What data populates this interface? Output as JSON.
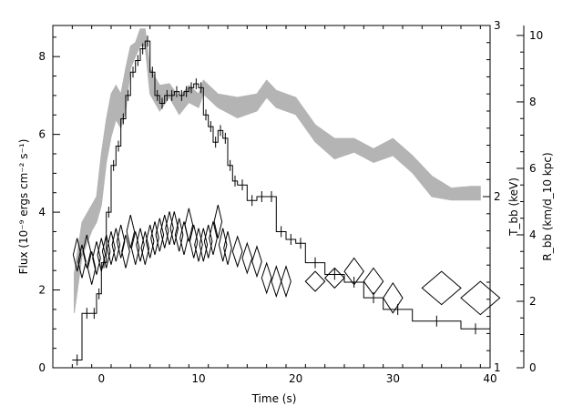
{
  "chart_data": {
    "type": "line",
    "xlabel": "Time (s)",
    "ylabel_left": "Flux (10⁻⁹ ergs cm⁻² s⁻¹)",
    "ylabel_right_T": "T_bb (keV)",
    "ylabel_right_R": "R_bb (km/d_10 kpc)",
    "xlim": [
      -5,
      40
    ],
    "ylim_flux": [
      0,
      8.8
    ],
    "ylim_T": [
      1,
      3
    ],
    "ylim_R": [
      0,
      10.3
    ],
    "x_ticks": [
      "0",
      "10",
      "20",
      "30",
      "40"
    ],
    "flux_ticks": [
      "0",
      "2",
      "4",
      "6",
      "8"
    ],
    "T_ticks": [
      "1",
      "2",
      "3"
    ],
    "R_ticks": [
      "0",
      "2",
      "4",
      "6",
      "8",
      "10"
    ],
    "colors": {
      "band": "#b4b4b4",
      "line": "#000000"
    },
    "flux_histogram": [
      [
        -3,
        0.2
      ],
      [
        -2,
        1.4
      ],
      [
        -1,
        1.4
      ],
      [
        -0.5,
        1.9
      ],
      [
        0,
        2.7
      ],
      [
        0.5,
        4.0
      ],
      [
        1,
        5.2
      ],
      [
        1.5,
        5.7
      ],
      [
        2,
        6.4
      ],
      [
        2.5,
        7.0
      ],
      [
        3,
        7.6
      ],
      [
        3.5,
        7.9
      ],
      [
        4,
        8.2
      ],
      [
        4.5,
        8.4
      ],
      [
        5,
        7.6
      ],
      [
        5.5,
        7.0
      ],
      [
        6,
        6.8
      ],
      [
        6.5,
        7.0
      ],
      [
        7,
        7.0
      ],
      [
        7.5,
        7.1
      ],
      [
        8,
        7.0
      ],
      [
        8.5,
        7.1
      ],
      [
        9,
        7.2
      ],
      [
        9.5,
        7.3
      ],
      [
        10,
        7.2
      ],
      [
        10.5,
        6.5
      ],
      [
        11,
        6.2
      ],
      [
        11.5,
        5.8
      ],
      [
        12,
        6.1
      ],
      [
        12.5,
        5.9
      ],
      [
        13,
        5.2
      ],
      [
        13.5,
        4.8
      ],
      [
        14,
        4.7
      ],
      [
        15,
        4.3
      ],
      [
        16,
        4.4
      ],
      [
        17,
        4.4
      ],
      [
        18,
        3.5
      ],
      [
        19,
        3.3
      ],
      [
        20,
        3.2
      ],
      [
        21,
        2.7
      ],
      [
        23,
        2.4
      ],
      [
        25,
        2.2
      ],
      [
        27,
        1.8
      ],
      [
        29,
        1.5
      ],
      [
        32,
        1.2
      ],
      [
        37,
        1.0
      ],
      [
        40,
        1.0
      ]
    ],
    "temperature_band": [
      [
        -2.8,
        1.32,
        1.55
      ],
      [
        -2,
        1.65,
        1.85
      ],
      [
        -1,
        1.8,
        1.95
      ],
      [
        -0.5,
        1.85,
        2.0
      ],
      [
        0,
        1.95,
        2.25
      ],
      [
        0.5,
        2.2,
        2.45
      ],
      [
        1,
        2.35,
        2.6
      ],
      [
        1.5,
        2.45,
        2.65
      ],
      [
        2,
        2.4,
        2.6
      ],
      [
        2.5,
        2.5,
        2.75
      ],
      [
        3,
        2.75,
        2.88
      ],
      [
        3.5,
        2.82,
        2.9
      ],
      [
        4,
        2.88,
        2.98
      ],
      [
        4.5,
        2.88,
        2.98
      ],
      [
        5,
        2.6,
        2.75
      ],
      [
        5.5,
        2.55,
        2.7
      ],
      [
        6,
        2.5,
        2.65
      ],
      [
        7,
        2.58,
        2.66
      ],
      [
        8,
        2.48,
        2.58
      ],
      [
        9,
        2.55,
        2.65
      ],
      [
        10,
        2.52,
        2.6
      ],
      [
        10.5,
        2.6,
        2.68
      ],
      [
        12,
        2.52,
        2.6
      ],
      [
        14,
        2.46,
        2.58
      ],
      [
        16,
        2.5,
        2.6
      ],
      [
        17,
        2.58,
        2.68
      ],
      [
        18,
        2.52,
        2.62
      ],
      [
        20,
        2.48,
        2.58
      ],
      [
        22,
        2.32,
        2.42
      ],
      [
        24,
        2.22,
        2.34
      ],
      [
        26,
        2.26,
        2.34
      ],
      [
        28,
        2.2,
        2.28
      ],
      [
        30,
        2.24,
        2.34
      ],
      [
        32,
        2.14,
        2.24
      ],
      [
        34,
        2.0,
        2.12
      ],
      [
        36,
        1.98,
        2.05
      ],
      [
        38,
        1.98,
        2.06
      ],
      [
        39,
        1.98,
        2.06
      ]
    ],
    "radius_diamonds": [
      [
        -2.5,
        3.4,
        0.4,
        0.5
      ],
      [
        -2,
        3.2,
        0.4,
        0.5
      ],
      [
        -1.5,
        3.5,
        0.4,
        0.5
      ],
      [
        -1,
        3.0,
        0.4,
        0.5
      ],
      [
        -0.5,
        3.3,
        0.4,
        0.5
      ],
      [
        0,
        3.4,
        0.4,
        0.5
      ],
      [
        0.5,
        3.5,
        0.4,
        0.5
      ],
      [
        1,
        3.6,
        0.4,
        0.5
      ],
      [
        1.5,
        3.7,
        0.4,
        0.5
      ],
      [
        2,
        3.8,
        0.4,
        0.5
      ],
      [
        2.5,
        3.5,
        0.4,
        0.5
      ],
      [
        3,
        4.1,
        0.4,
        0.5
      ],
      [
        3.5,
        3.6,
        0.4,
        0.5
      ],
      [
        4,
        3.7,
        0.4,
        0.5
      ],
      [
        4.5,
        3.6,
        0.4,
        0.5
      ],
      [
        5,
        3.8,
        0.4,
        0.5
      ],
      [
        5.5,
        3.9,
        0.4,
        0.5
      ],
      [
        6,
        4.0,
        0.4,
        0.5
      ],
      [
        6.5,
        4.1,
        0.4,
        0.5
      ],
      [
        7,
        4.2,
        0.4,
        0.5
      ],
      [
        7.5,
        4.2,
        0.4,
        0.5
      ],
      [
        8,
        4.0,
        0.4,
        0.5
      ],
      [
        8.5,
        3.9,
        0.4,
        0.5
      ],
      [
        9,
        4.3,
        0.4,
        0.5
      ],
      [
        9.5,
        3.8,
        0.4,
        0.5
      ],
      [
        10,
        3.7,
        0.4,
        0.5
      ],
      [
        10.5,
        3.7,
        0.4,
        0.5
      ],
      [
        11,
        3.8,
        0.4,
        0.5
      ],
      [
        11.5,
        3.9,
        0.4,
        0.5
      ],
      [
        12,
        4.4,
        0.4,
        0.5
      ],
      [
        12.5,
        3.7,
        0.4,
        0.5
      ],
      [
        13,
        3.6,
        0.4,
        0.5
      ],
      [
        14,
        3.5,
        0.5,
        0.45
      ],
      [
        15,
        3.3,
        0.5,
        0.45
      ],
      [
        16,
        3.2,
        0.5,
        0.45
      ],
      [
        17,
        2.7,
        0.5,
        0.45
      ],
      [
        18,
        2.6,
        0.5,
        0.45
      ],
      [
        19,
        2.6,
        0.5,
        0.45
      ],
      [
        22,
        2.6,
        1.0,
        0.3
      ],
      [
        24,
        2.7,
        1.0,
        0.3
      ],
      [
        26,
        2.9,
        1.0,
        0.4
      ],
      [
        28,
        2.6,
        1.0,
        0.4
      ],
      [
        30,
        2.1,
        1.0,
        0.45
      ],
      [
        35,
        2.4,
        2.0,
        0.5
      ],
      [
        39,
        2.1,
        2.0,
        0.5
      ]
    ]
  }
}
